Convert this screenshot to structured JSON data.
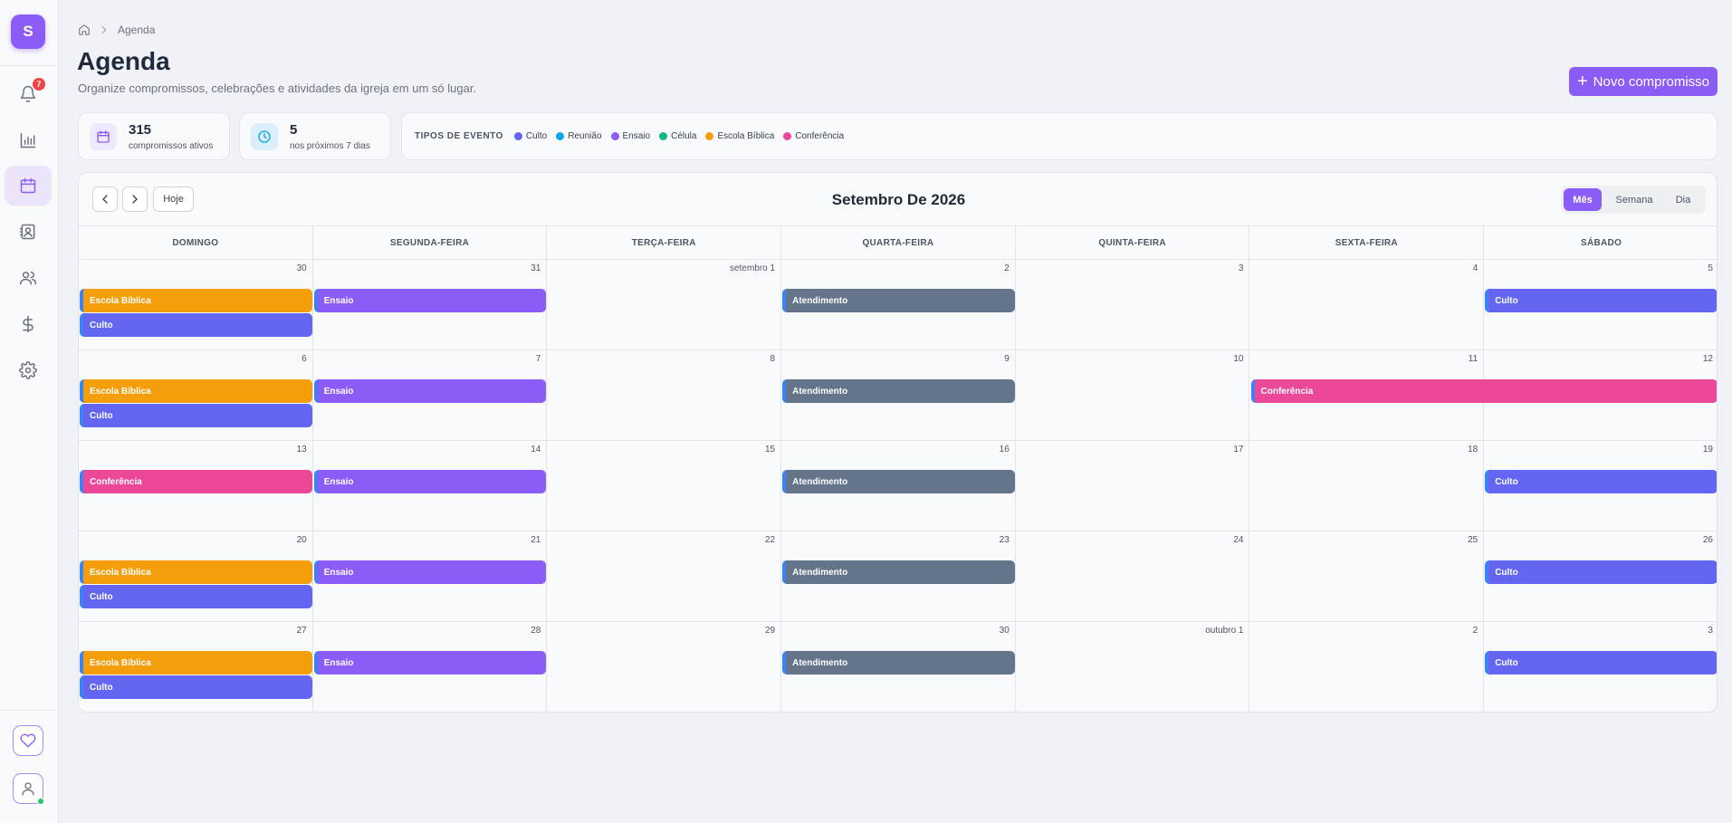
{
  "sidebar": {
    "logo_letter": "S",
    "notification_count": "7",
    "items": [
      {
        "name": "bell-icon",
        "active": false
      },
      {
        "name": "bar-chart-icon",
        "active": false
      },
      {
        "name": "calendar-icon",
        "active": true
      },
      {
        "name": "contacts-icon",
        "active": false
      },
      {
        "name": "users-icon",
        "active": false
      },
      {
        "name": "dollar-icon",
        "active": false
      },
      {
        "name": "gear-icon",
        "active": false
      }
    ]
  },
  "breadcrumb": {
    "current": "Agenda"
  },
  "header": {
    "title": "Agenda",
    "subtitle": "Organize compromissos, celebrações e atividades da igreja em um só lugar.",
    "new_button": "Novo compromisso"
  },
  "stats": [
    {
      "value": "315",
      "label": "compromissos ativos"
    },
    {
      "value": "5",
      "label": "nos próximos 7 dias"
    }
  ],
  "legend": {
    "title": "TIPOS DE EVENTO",
    "items": [
      {
        "label": "Culto",
        "color": "#6366f1"
      },
      {
        "label": "Reunião",
        "color": "#0ea5e9"
      },
      {
        "label": "Ensaio",
        "color": "#8b5cf6"
      },
      {
        "label": "Célula",
        "color": "#10b981"
      },
      {
        "label": "Escola Bíblica",
        "color": "#f59e0b"
      },
      {
        "label": "Conferência",
        "color": "#ec4899"
      }
    ]
  },
  "calendar": {
    "title": "Setembro De 2026",
    "today_label": "Hoje",
    "views": [
      "Mês",
      "Semana",
      "Dia"
    ],
    "active_view": "Mês",
    "weekdays": [
      "DOMINGO",
      "SEGUNDA-FEIRA",
      "TERÇA-FEIRA",
      "QUARTA-FEIRA",
      "QUINTA-FEIRA",
      "SEXTA-FEIRA",
      "SÁBADO"
    ],
    "weeks": [
      [
        "30",
        "31",
        "setembro 1",
        "2",
        "3",
        "4",
        "5"
      ],
      [
        "6",
        "7",
        "8",
        "9",
        "10",
        "11",
        "12"
      ],
      [
        "13",
        "14",
        "15",
        "16",
        "17",
        "18",
        "19"
      ],
      [
        "20",
        "21",
        "22",
        "23",
        "24",
        "25",
        "26"
      ],
      [
        "27",
        "28",
        "29",
        "30",
        "outubro 1",
        "2",
        "3"
      ]
    ],
    "event_colors": {
      "Escola Bíblica": "#f59e0b",
      "Culto": "#6366f1",
      "Ensaio": "#8b5cf6",
      "Atendimento": "#64748b",
      "Conferência": "#ec4899"
    },
    "events": [
      {
        "week": 0,
        "day": 0,
        "slot": 0,
        "span": 1,
        "title": "Escola Bíblica"
      },
      {
        "week": 0,
        "day": 0,
        "slot": 1,
        "span": 1,
        "title": "Culto"
      },
      {
        "week": 0,
        "day": 1,
        "slot": 0,
        "span": 1,
        "title": "Ensaio"
      },
      {
        "week": 0,
        "day": 3,
        "slot": 0,
        "span": 1,
        "title": "Atendimento"
      },
      {
        "week": 0,
        "day": 6,
        "slot": 0,
        "span": 1,
        "title": "Culto"
      },
      {
        "week": 1,
        "day": 0,
        "slot": 0,
        "span": 1,
        "title": "Escola Bíblica"
      },
      {
        "week": 1,
        "day": 0,
        "slot": 1,
        "span": 1,
        "title": "Culto"
      },
      {
        "week": 1,
        "day": 1,
        "slot": 0,
        "span": 1,
        "title": "Ensaio"
      },
      {
        "week": 1,
        "day": 3,
        "slot": 0,
        "span": 1,
        "title": "Atendimento"
      },
      {
        "week": 1,
        "day": 5,
        "slot": 0,
        "span": 2,
        "title": "Conferência"
      },
      {
        "week": 2,
        "day": 0,
        "slot": 0,
        "span": 1,
        "title": "Conferência"
      },
      {
        "week": 2,
        "day": 1,
        "slot": 0,
        "span": 1,
        "title": "Ensaio"
      },
      {
        "week": 2,
        "day": 3,
        "slot": 0,
        "span": 1,
        "title": "Atendimento"
      },
      {
        "week": 2,
        "day": 6,
        "slot": 0,
        "span": 1,
        "title": "Culto"
      },
      {
        "week": 3,
        "day": 0,
        "slot": 0,
        "span": 1,
        "title": "Escola Bíblica"
      },
      {
        "week": 3,
        "day": 0,
        "slot": 1,
        "span": 1,
        "title": "Culto"
      },
      {
        "week": 3,
        "day": 1,
        "slot": 0,
        "span": 1,
        "title": "Ensaio"
      },
      {
        "week": 3,
        "day": 3,
        "slot": 0,
        "span": 1,
        "title": "Atendimento"
      },
      {
        "week": 3,
        "day": 6,
        "slot": 0,
        "span": 1,
        "title": "Culto"
      },
      {
        "week": 4,
        "day": 0,
        "slot": 0,
        "span": 1,
        "title": "Escola Bíblica"
      },
      {
        "week": 4,
        "day": 0,
        "slot": 1,
        "span": 1,
        "title": "Culto"
      },
      {
        "week": 4,
        "day": 1,
        "slot": 0,
        "span": 1,
        "title": "Ensaio"
      },
      {
        "week": 4,
        "day": 3,
        "slot": 0,
        "span": 1,
        "title": "Atendimento"
      },
      {
        "week": 4,
        "day": 6,
        "slot": 0,
        "span": 1,
        "title": "Culto"
      }
    ]
  }
}
